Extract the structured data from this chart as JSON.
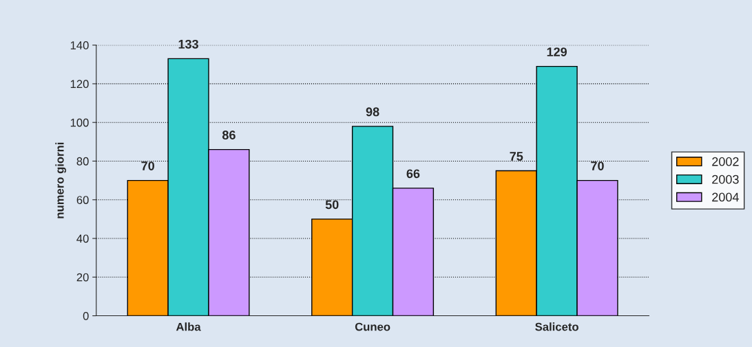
{
  "chart_data": {
    "type": "bar",
    "ylabel": "numero giorni",
    "categories": [
      "Alba",
      "Cuneo",
      "Saliceto"
    ],
    "series": [
      {
        "name": "2002",
        "color": "#ff9900",
        "values": [
          70,
          50,
          75
        ]
      },
      {
        "name": "2003",
        "color": "#33cccc",
        "values": [
          133,
          98,
          129
        ]
      },
      {
        "name": "2004",
        "color": "#cc99ff",
        "values": [
          86,
          66,
          70
        ]
      }
    ],
    "ylim": [
      0,
      140
    ],
    "yticks": [
      0,
      20,
      40,
      60,
      80,
      100,
      120,
      140
    ],
    "grid": "y",
    "legend": "right",
    "data_labels": true
  }
}
